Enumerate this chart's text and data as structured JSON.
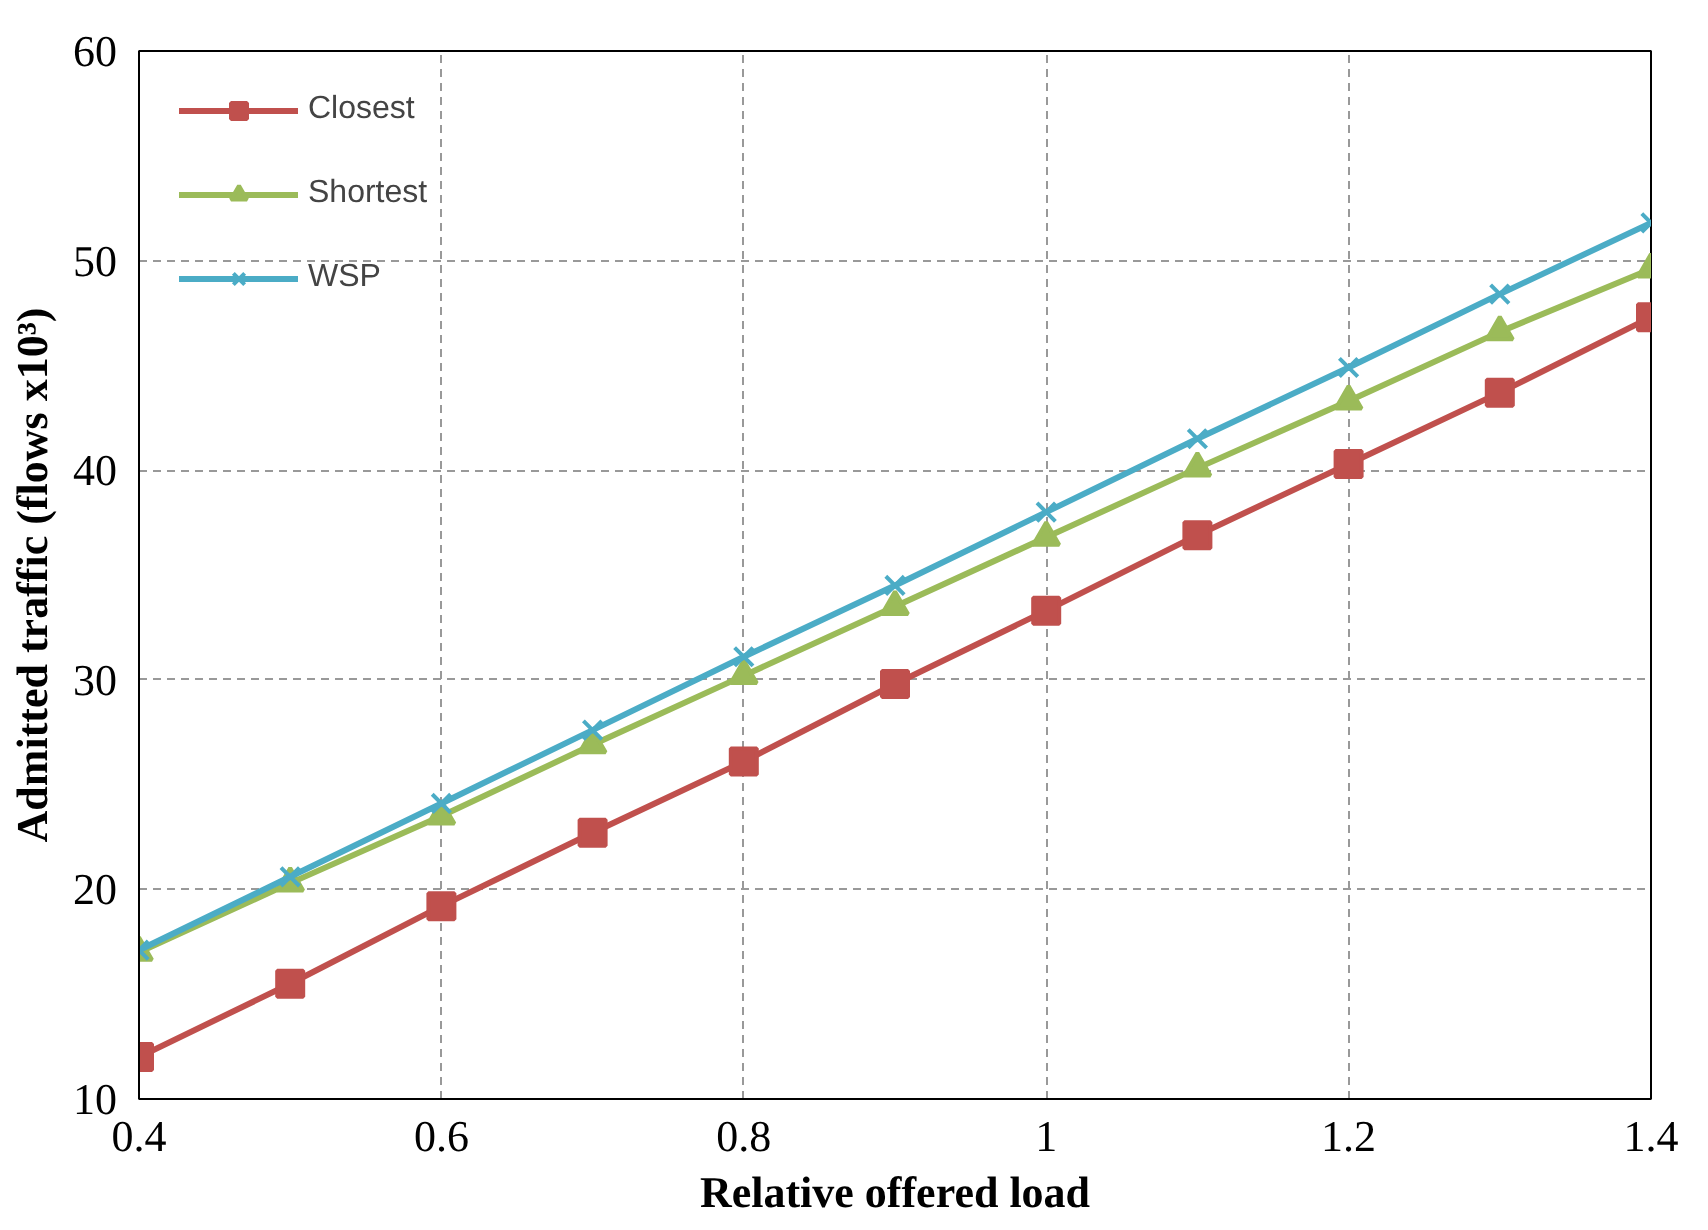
{
  "chart_data": {
    "type": "line",
    "xlabel": "Relative offered load",
    "ylabel": "Admitted traffic (flows x10³)",
    "x": [
      0.4,
      0.5,
      0.6,
      0.7,
      0.8,
      0.9,
      1.0,
      1.1,
      1.2,
      1.3,
      1.4
    ],
    "series": [
      {
        "name": "Closest",
        "color": "#c0504d",
        "marker": "square",
        "values": [
          12.0,
          15.5,
          19.2,
          22.7,
          26.1,
          29.8,
          33.3,
          36.9,
          40.3,
          43.7,
          47.3
        ]
      },
      {
        "name": "Shortest",
        "color": "#9bbb59",
        "marker": "triangle",
        "values": [
          17.0,
          20.3,
          23.5,
          26.9,
          30.2,
          33.5,
          36.8,
          40.1,
          43.3,
          46.6,
          49.6
        ]
      },
      {
        "name": "WSP",
        "color": "#4bacc6",
        "marker": "cross",
        "values": [
          17.1,
          20.6,
          24.1,
          27.6,
          31.1,
          34.5,
          38.0,
          41.5,
          44.9,
          48.4,
          51.8
        ]
      }
    ],
    "xlim": [
      0.4,
      1.4
    ],
    "xticks": [
      0.4,
      0.6,
      0.8,
      {
        "value": 1.0,
        "label": "1"
      },
      1.2,
      1.4
    ],
    "ylim": [
      10,
      60
    ],
    "yticks": [
      10,
      20,
      30,
      40,
      50,
      60
    ],
    "grid": true,
    "legend": "top left",
    "line_style": "solid"
  }
}
